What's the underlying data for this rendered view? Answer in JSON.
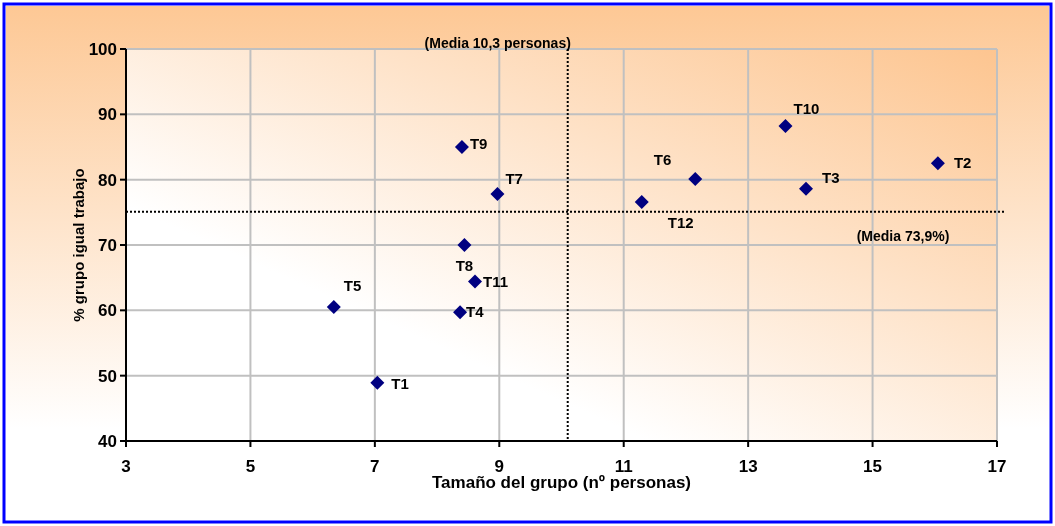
{
  "chart_data": {
    "type": "scatter",
    "xlabel": "Tamaño del grupo (nº personas)",
    "ylabel": "% grupo igual trabajo",
    "x": [
      7.04,
      16.05,
      13.93,
      8.37,
      6.34,
      12.15,
      8.97,
      8.44,
      8.4,
      13.6,
      8.61,
      11.29
    ],
    "series": [
      {
        "color": "#000080",
        "values": [
          48.9,
          82.5,
          78.6,
          59.7,
          60.5,
          80.1,
          77.8,
          70.0,
          85.0,
          88.2,
          64.4,
          76.6
        ]
      }
    ],
    "marker": "diamond",
    "annotations": [
      {
        "text": "T1",
        "x": 7.04,
        "y": 48.9
      },
      {
        "text": "T2",
        "x": 16.05,
        "y": 82.5
      },
      {
        "text": "T3",
        "x": 13.93,
        "y": 78.6
      },
      {
        "text": "T4",
        "x": 8.37,
        "y": 59.7
      },
      {
        "text": "T5",
        "x": 6.34,
        "y": 60.5
      },
      {
        "text": "T6",
        "x": 12.15,
        "y": 80.1
      },
      {
        "text": "T7",
        "x": 8.97,
        "y": 77.8
      },
      {
        "text": "T8",
        "x": 8.44,
        "y": 70.0
      },
      {
        "text": "T9",
        "x": 8.4,
        "y": 85.0
      },
      {
        "text": "T10",
        "x": 13.6,
        "y": 88.2
      },
      {
        "text": "T11",
        "x": 8.61,
        "y": 64.4
      },
      {
        "text": "T12",
        "x": 11.29,
        "y": 76.6
      }
    ],
    "ref_lines": [
      {
        "axis": "x",
        "value": 10.1,
        "label": "(Media 10,3 personas)",
        "color": "#000000",
        "line_style": "dotted"
      },
      {
        "axis": "y",
        "value": 75.1,
        "label": "(Media 73,9%)",
        "color": "#000000",
        "line_style": "dotted"
      }
    ],
    "xlim": [
      3,
      17
    ],
    "xticks": [
      3,
      5,
      7,
      9,
      11,
      13,
      15,
      17
    ],
    "ylim": [
      40,
      100
    ],
    "yticks": [
      40,
      50,
      60,
      70,
      80,
      90,
      100
    ],
    "grid": true
  }
}
